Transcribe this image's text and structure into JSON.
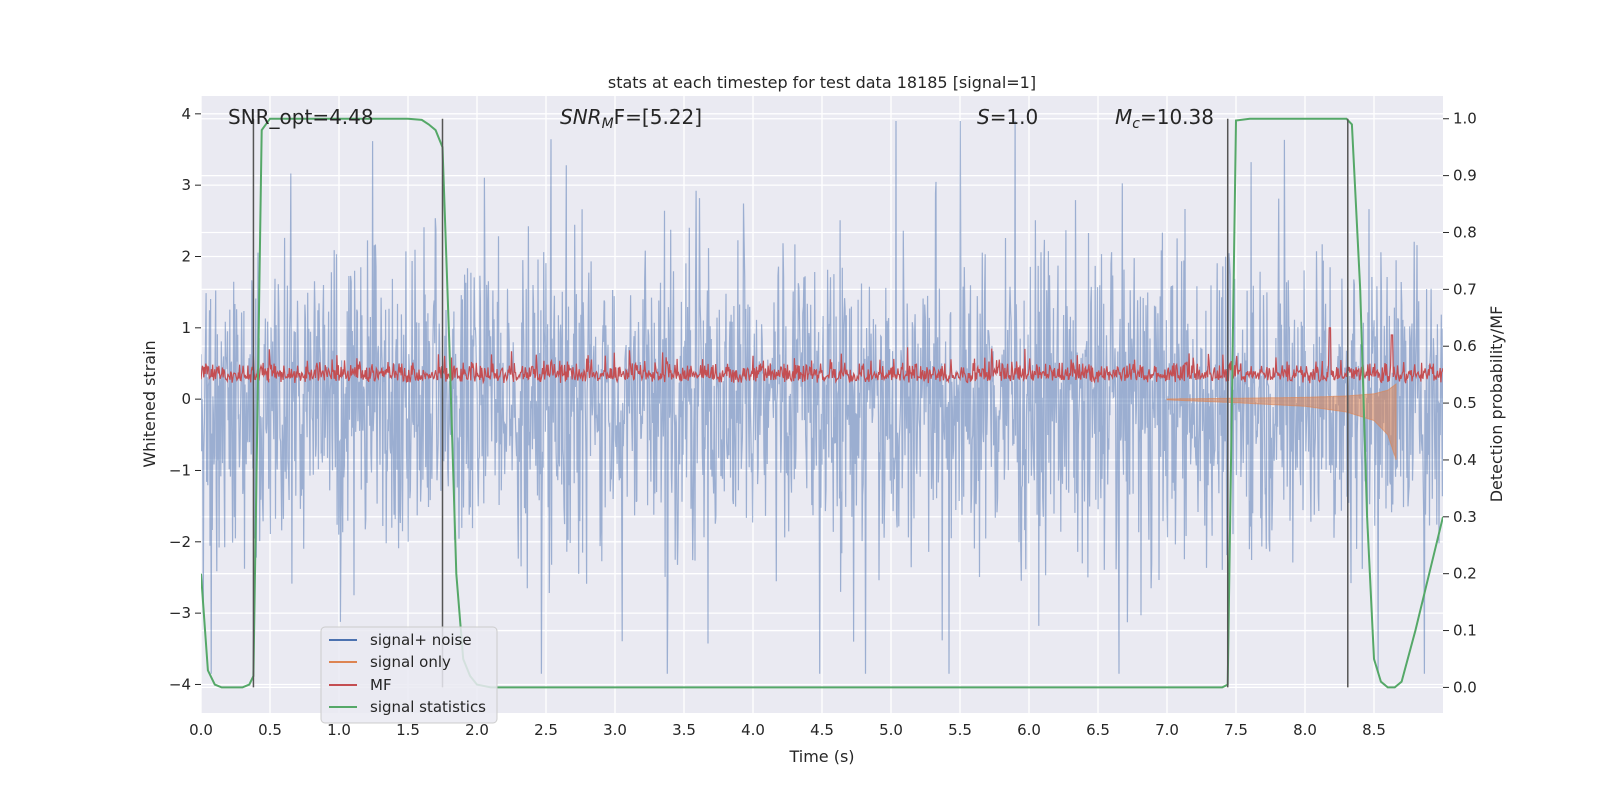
{
  "chart_data": {
    "type": "line",
    "title": "stats at each timestep for test data 18185 [signal=1]",
    "xlabel": "Time (s)",
    "ylabel": "Whitened strain",
    "y2label": "Detection probability/MF",
    "xlim": [
      0.0,
      9.0
    ],
    "ylim": [
      -4.4,
      4.25
    ],
    "y2lim": [
      -0.045,
      1.04
    ],
    "xticks": [
      "0.0",
      "0.5",
      "1.0",
      "1.5",
      "2.0",
      "2.5",
      "3.0",
      "3.5",
      "4.0",
      "4.5",
      "5.0",
      "5.5",
      "6.0",
      "6.5",
      "7.0",
      "7.5",
      "8.0",
      "8.5"
    ],
    "yticks": [
      "4",
      "3",
      "2",
      "1",
      "0",
      "−1",
      "−2",
      "−3",
      "−4"
    ],
    "y2ticks": [
      "1.0",
      "0.9",
      "0.8",
      "0.7",
      "0.6",
      "0.5",
      "0.4",
      "0.3",
      "0.2",
      "0.1",
      "0.0"
    ],
    "grid": true,
    "legend_position": "lower-left",
    "colors": {
      "signal_noise": "#4c72b0",
      "signal_only": "#dd8452",
      "mf": "#c44e52",
      "signal_statistics": "#55a868",
      "background": "#eaeaf2",
      "vline": "#555555"
    },
    "annotations": {
      "snr_opt": "SNR_opt=4.48",
      "snr_mf_base": "SNR",
      "snr_mf_sub": "M",
      "snr_mf_rest": "F=[5.22]",
      "s_italic": "S",
      "s_rest": "=1.0",
      "mc_italic": "M",
      "mc_sub": "c",
      "mc_rest": "=10.38"
    },
    "series": [
      {
        "name": "signal+ noise",
        "description_values": "dense whitened strain noise spanning roughly -3.8 to 3.9 over 0-9 s"
      },
      {
        "name": "signal only",
        "x": [
          7.0,
          7.5,
          8.0,
          8.3,
          8.5,
          8.6,
          8.66
        ],
        "envelope": [
          0.01,
          0.05,
          0.1,
          0.18,
          0.3,
          0.5,
          0.85
        ]
      },
      {
        "name": "MF",
        "description_values": "matched filter output fluctuating between about 0.0 and 0.6, peak about 1.0 at 8.18 s and 0.9 at 8.63 s"
      },
      {
        "name": "signal statistics",
        "x": [
          0.0,
          0.05,
          0.1,
          0.15,
          0.2,
          0.25,
          0.3,
          0.35,
          0.38,
          0.41,
          0.44,
          0.5,
          0.6,
          1.0,
          1.5,
          1.6,
          1.65,
          1.7,
          1.75,
          1.8,
          1.85,
          1.9,
          1.95,
          2.0,
          2.1,
          2.5,
          3.0,
          4.0,
          5.0,
          6.0,
          7.0,
          7.4,
          7.44,
          7.47,
          7.5,
          7.6,
          8.0,
          8.3,
          8.34,
          8.4,
          8.45,
          8.5,
          8.55,
          8.6,
          8.65,
          8.7,
          8.8,
          8.9,
          9.0
        ],
        "y": [
          0.2,
          0.03,
          0.005,
          0.0,
          0.0,
          0.0,
          0.0,
          0.005,
          0.02,
          0.5,
          0.98,
          1.0,
          1.0,
          1.0,
          1.0,
          0.998,
          0.99,
          0.98,
          0.95,
          0.6,
          0.2,
          0.05,
          0.02,
          0.005,
          0.0,
          0.0,
          0.0,
          0.0,
          0.0,
          0.0,
          0.0,
          0.0,
          0.005,
          0.5,
          0.997,
          1.0,
          1.0,
          1.0,
          0.99,
          0.7,
          0.3,
          0.05,
          0.01,
          0.0,
          0.0,
          0.01,
          0.1,
          0.2,
          0.3
        ]
      }
    ],
    "vlines": [
      0.38,
      1.75,
      7.44,
      8.31
    ],
    "legend": [
      {
        "label": "signal+ noise",
        "color": "#4c72b0"
      },
      {
        "label": "signal only",
        "color": "#dd8452"
      },
      {
        "label": "MF",
        "color": "#c44e52"
      },
      {
        "label": "signal statistics",
        "color": "#55a868"
      }
    ]
  }
}
